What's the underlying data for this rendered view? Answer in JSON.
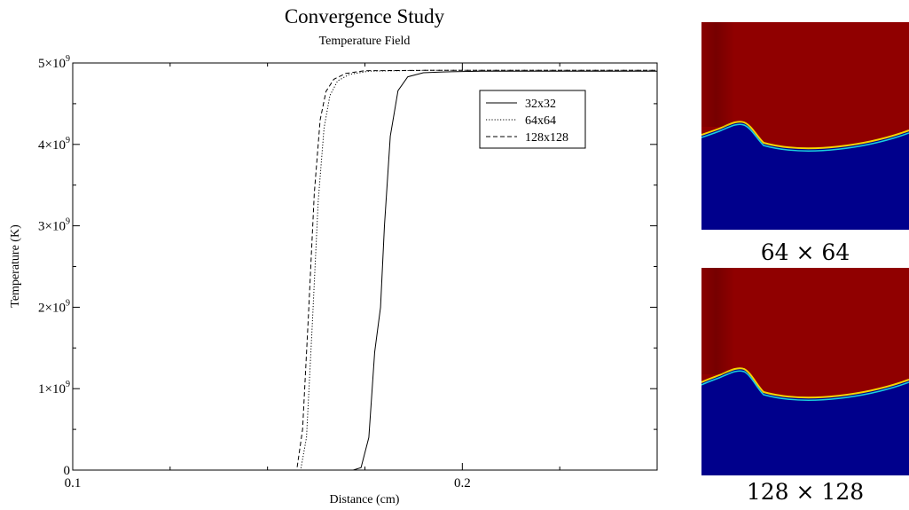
{
  "chart_data": {
    "type": "line",
    "title": "Convergence Study",
    "subtitle": "Temperature Field",
    "xlabel": "Distance (cm)",
    "ylabel": "Temperature (K)",
    "xlim": [
      0.1,
      0.25
    ],
    "ylim": [
      0,
      5000000000
    ],
    "x_ticks": [
      {
        "value": 0.1,
        "label": "0.1"
      },
      {
        "value": 0.2,
        "label": "0.2"
      }
    ],
    "y_ticks": [
      {
        "value": 0,
        "label": "0",
        "exp": ""
      },
      {
        "value": 1000000000,
        "label": "1×10",
        "exp": "9"
      },
      {
        "value": 2000000000,
        "label": "2×10",
        "exp": "9"
      },
      {
        "value": 3000000000,
        "label": "3×10",
        "exp": "9"
      },
      {
        "value": 4000000000,
        "label": "4×10",
        "exp": "9"
      },
      {
        "value": 5000000000,
        "label": "5×10",
        "exp": "9"
      }
    ],
    "grid": false,
    "legend_position": "top-right",
    "series": [
      {
        "name": "32x32",
        "dash": "solid",
        "x": [
          0.1,
          0.172,
          0.174,
          0.176,
          0.1775,
          0.179,
          0.18,
          0.1815,
          0.1835,
          0.186,
          0.19,
          0.195,
          0.205,
          0.25
        ],
        "y": [
          0,
          0,
          30000000,
          400000000,
          1450000000,
          2000000000,
          3000000000,
          4100000000,
          4660000000,
          4830000000,
          4880000000,
          4890000000,
          4900000000,
          4900000000
        ]
      },
      {
        "name": "64x64",
        "dash": "dotted",
        "x": [
          0.1,
          0.1585,
          0.16,
          0.1615,
          0.163,
          0.1645,
          0.166,
          0.168,
          0.171,
          0.176,
          0.19,
          0.25
        ],
        "y": [
          0,
          0,
          400000000,
          1800000000,
          3300000000,
          4200000000,
          4600000000,
          4780000000,
          4860000000,
          4900000000,
          4910000000,
          4910000000
        ]
      },
      {
        "name": "128x128",
        "dash": "dashed",
        "x": [
          0.1,
          0.1575,
          0.159,
          0.1605,
          0.162,
          0.1635,
          0.165,
          0.167,
          0.17,
          0.175,
          0.19,
          0.25
        ],
        "y": [
          0,
          0,
          500000000,
          1900000000,
          3400000000,
          4300000000,
          4650000000,
          4800000000,
          4870000000,
          4905000000,
          4910000000,
          4910000000
        ]
      }
    ]
  },
  "panels": {
    "top_caption": "64 × 64",
    "bottom_caption": "128 × 128",
    "colors": {
      "hot": "#900000",
      "cold": "#00008c"
    }
  }
}
